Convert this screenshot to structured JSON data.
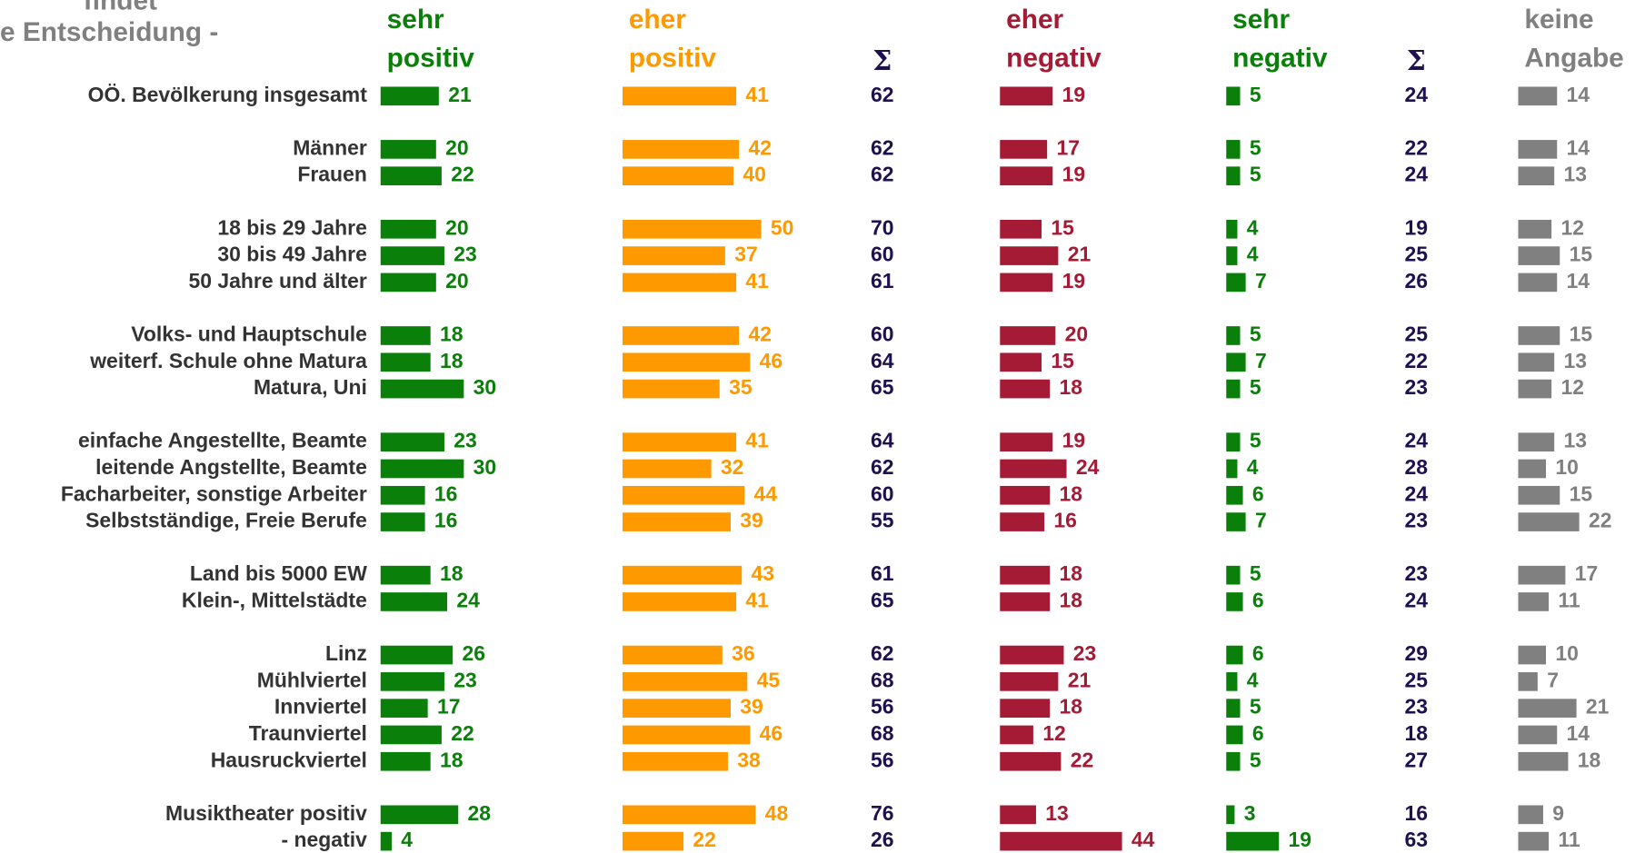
{
  "chart_data": {
    "type": "bar",
    "title": [
      "findet",
      "e Entscheidung -"
    ],
    "categories": [
      "OÖ. Bevölkerung insgesamt",
      null,
      "Männer",
      "Frauen",
      null,
      "18 bis 29 Jahre",
      "30 bis 49 Jahre",
      "50 Jahre und älter",
      null,
      "Volks- und Hauptschule",
      "weiterf. Schule ohne Matura",
      "Matura, Uni",
      null,
      "einfache Angestellte, Beamte",
      "leitende Angstellte, Beamte",
      "Facharbeiter, sonstige Arbeiter",
      "Selbstständige, Freie Berufe",
      null,
      "Land bis 5000 EW",
      "Klein-, Mittelstädte",
      null,
      "Linz",
      "Mühlviertel",
      "Innviertel",
      "Traunviertel",
      "Hausruckviertel",
      null,
      "Musiktheater positiv",
      "- negativ"
    ],
    "series": [
      {
        "name": "sehr positiv",
        "color": "#0a800a",
        "style": "bar",
        "values": [
          21,
          null,
          20,
          22,
          null,
          20,
          23,
          20,
          null,
          18,
          18,
          30,
          null,
          23,
          30,
          16,
          16,
          null,
          18,
          24,
          null,
          26,
          23,
          17,
          22,
          18,
          null,
          28,
          4
        ]
      },
      {
        "name": "eher positiv",
        "color": "#ff9900",
        "style": "bar",
        "values": [
          41,
          null,
          42,
          40,
          null,
          50,
          37,
          41,
          null,
          42,
          46,
          35,
          null,
          41,
          32,
          44,
          39,
          null,
          43,
          41,
          null,
          36,
          45,
          39,
          46,
          38,
          null,
          48,
          22
        ]
      },
      {
        "name": "Σ",
        "color": "#1f1050",
        "style": "text",
        "values": [
          62,
          null,
          62,
          62,
          null,
          70,
          60,
          61,
          null,
          60,
          64,
          65,
          null,
          64,
          62,
          60,
          55,
          null,
          61,
          65,
          null,
          62,
          68,
          56,
          68,
          56,
          null,
          76,
          26
        ]
      },
      {
        "name": "eher negativ",
        "color": "#a51a35",
        "style": "bar",
        "values": [
          19,
          null,
          17,
          19,
          null,
          15,
          21,
          19,
          null,
          20,
          15,
          18,
          null,
          19,
          24,
          18,
          16,
          null,
          18,
          18,
          null,
          23,
          21,
          18,
          12,
          22,
          null,
          13,
          44
        ]
      },
      {
        "name": "sehr negativ",
        "color": "#0a800a",
        "style": "bar",
        "values": [
          5,
          null,
          5,
          5,
          null,
          4,
          4,
          7,
          null,
          5,
          7,
          5,
          null,
          5,
          4,
          6,
          7,
          null,
          5,
          6,
          null,
          6,
          4,
          5,
          6,
          5,
          null,
          3,
          19
        ]
      },
      {
        "name": "Σ",
        "color": "#1f1050",
        "style": "text",
        "values": [
          24,
          null,
          22,
          24,
          null,
          19,
          25,
          26,
          null,
          25,
          22,
          23,
          null,
          24,
          28,
          24,
          23,
          null,
          23,
          24,
          null,
          29,
          25,
          23,
          18,
          27,
          null,
          16,
          63
        ]
      },
      {
        "name": "keine Angabe",
        "color": "#808080",
        "style": "bar",
        "values": [
          14,
          null,
          14,
          13,
          null,
          12,
          15,
          14,
          null,
          15,
          13,
          12,
          null,
          13,
          10,
          15,
          22,
          null,
          17,
          11,
          null,
          10,
          7,
          21,
          14,
          18,
          null,
          9,
          11
        ]
      }
    ]
  }
}
